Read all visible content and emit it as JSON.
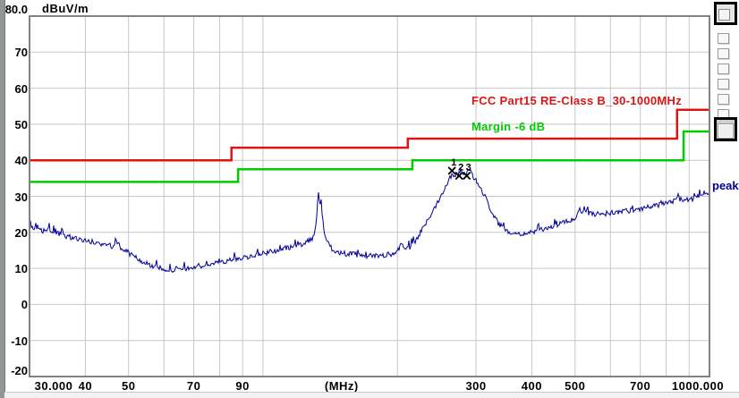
{
  "window": {
    "unit_label": "dBuV/m",
    "peak_label": "peak"
  },
  "legend": {
    "limit": "FCC Part15 RE-Class B_30-1000MHz",
    "margin": "Margin -6 dB"
  },
  "colors": {
    "limit_red": "#dc1414",
    "margin_green": "#00cc00",
    "trace_blue": "#000099",
    "grid": "#c6c6c6",
    "border": "#828282",
    "text": "#000000"
  },
  "chart_data": {
    "type": "line",
    "title": "",
    "xlabel": "(MHz)",
    "ylabel": "dBuV/m",
    "xscale": "log",
    "xmin": 30,
    "xmax": 1000,
    "ymin": -20,
    "ymax": 80,
    "grid": true,
    "x_gridlines": [
      40,
      50,
      60,
      70,
      80,
      90,
      100,
      200,
      300,
      400,
      500,
      600,
      700,
      800,
      900
    ],
    "y_gridlines": [
      70,
      60,
      50,
      40,
      30,
      20,
      10,
      0,
      -10
    ],
    "y_ticks": [
      {
        "v": 80,
        "label": "80.0",
        "dy": -8
      },
      {
        "v": 70,
        "label": "70",
        "dy": 0
      },
      {
        "v": 60,
        "label": "60",
        "dy": 0
      },
      {
        "v": 50,
        "label": "50",
        "dy": 0
      },
      {
        "v": 40,
        "label": "40",
        "dy": 0
      },
      {
        "v": 30,
        "label": "30",
        "dy": 0
      },
      {
        "v": 20,
        "label": "20",
        "dy": 0
      },
      {
        "v": 10,
        "label": "10",
        "dy": 0
      },
      {
        "v": 0,
        "label": "0",
        "dy": 0
      },
      {
        "v": -10,
        "label": "-10",
        "dy": 0
      },
      {
        "v": -20,
        "label": "-20",
        "dy": -7
      }
    ],
    "x_ticks": [
      {
        "f": 30,
        "label": "30.000",
        "dx": 27
      },
      {
        "f": 40,
        "label": "40",
        "dx": 0
      },
      {
        "f": 50,
        "label": "50",
        "dx": 0
      },
      {
        "f": 70,
        "label": "70",
        "dx": 0
      },
      {
        "f": 90,
        "label": "90",
        "dx": 0
      },
      {
        "f": 150,
        "label": "(MHz)",
        "dx": 0
      },
      {
        "f": 300,
        "label": "300",
        "dx": 0
      },
      {
        "f": 400,
        "label": "400",
        "dx": 0
      },
      {
        "f": 500,
        "label": "500",
        "dx": 0
      },
      {
        "f": 700,
        "label": "700",
        "dx": 0
      },
      {
        "f": 1000,
        "label": "1000.000",
        "dx": -13
      }
    ],
    "series": [
      {
        "name": "FCC Part15 RE-Class B_30-1000MHz",
        "role": "limit",
        "color": "#dc1414",
        "points": [
          [
            30,
            40
          ],
          [
            85,
            40
          ],
          [
            85,
            43.5
          ],
          [
            211,
            43.5
          ],
          [
            211,
            46
          ],
          [
            846,
            46
          ],
          [
            846,
            54
          ],
          [
            1000,
            54
          ]
        ]
      },
      {
        "name": "Margin -6 dB",
        "role": "margin",
        "color": "#00cc00",
        "points": [
          [
            30,
            34
          ],
          [
            88,
            34
          ],
          [
            88,
            37.5
          ],
          [
            216,
            37.5
          ],
          [
            216,
            40
          ],
          [
            875,
            40
          ],
          [
            875,
            48
          ],
          [
            1000,
            48
          ]
        ]
      },
      {
        "name": "peak",
        "role": "trace",
        "color": "#000099",
        "anchors": [
          [
            30,
            21.6
          ],
          [
            31,
            20.9
          ],
          [
            32,
            20.4
          ],
          [
            33,
            21.0
          ],
          [
            34,
            20.1
          ],
          [
            35,
            19.5
          ],
          [
            36,
            19.1
          ],
          [
            37,
            18.7
          ],
          [
            38,
            18.3
          ],
          [
            40,
            17.7
          ],
          [
            42,
            17.1
          ],
          [
            44,
            16.5
          ],
          [
            45,
            17.3
          ],
          [
            46,
            16.1
          ],
          [
            47,
            17.9
          ],
          [
            48,
            15.7
          ],
          [
            50,
            14.3
          ],
          [
            52,
            12.9
          ],
          [
            54,
            11.7
          ],
          [
            56,
            10.9
          ],
          [
            58,
            10.3
          ],
          [
            60,
            9.9
          ],
          [
            63,
            9.6
          ],
          [
            66,
            9.8
          ],
          [
            70,
            10.3
          ],
          [
            74,
            10.9
          ],
          [
            78,
            11.5
          ],
          [
            82,
            12.0
          ],
          [
            86,
            12.5
          ],
          [
            90,
            13.0
          ],
          [
            95,
            13.6
          ],
          [
            100,
            14.2
          ],
          [
            105,
            14.8
          ],
          [
            110,
            15.3
          ],
          [
            115,
            15.9
          ],
          [
            120,
            16.5
          ],
          [
            124,
            17.1
          ],
          [
            127,
            17.9
          ],
          [
            129,
            18.5
          ],
          [
            131,
            20.6
          ],
          [
            132,
            25.0
          ],
          [
            133,
            31.2
          ],
          [
            134,
            27.2
          ],
          [
            135,
            29.2
          ],
          [
            136,
            23.6
          ],
          [
            137,
            20.6
          ],
          [
            139,
            17.6
          ],
          [
            141,
            16.1
          ],
          [
            144,
            15.1
          ],
          [
            148,
            14.5
          ],
          [
            153,
            14.1
          ],
          [
            160,
            13.9
          ],
          [
            168,
            13.6
          ],
          [
            176,
            13.5
          ],
          [
            184,
            13.6
          ],
          [
            192,
            13.9
          ],
          [
            198,
            14.3
          ],
          [
            202,
            15.6
          ],
          [
            205,
            17.3
          ],
          [
            207,
            15.9
          ],
          [
            210,
            15.3
          ],
          [
            214,
            16.1
          ],
          [
            218,
            17.1
          ],
          [
            222,
            18.6
          ],
          [
            227,
            20.6
          ],
          [
            232,
            22.6
          ],
          [
            238,
            25.1
          ],
          [
            244,
            27.6
          ],
          [
            250,
            30.1
          ],
          [
            256,
            32.6
          ],
          [
            261,
            34.6
          ],
          [
            265,
            36.3
          ],
          [
            268,
            35.3
          ],
          [
            271,
            36.9
          ],
          [
            274,
            36.0
          ],
          [
            277,
            37.3
          ],
          [
            280,
            36.1
          ],
          [
            283,
            36.7
          ],
          [
            286,
            35.9
          ],
          [
            289,
            37.7
          ],
          [
            292,
            36.5
          ],
          [
            295,
            35.7
          ],
          [
            299,
            34.7
          ],
          [
            303,
            33.5
          ],
          [
            308,
            31.9
          ],
          [
            313,
            30.3
          ],
          [
            318,
            28.5
          ],
          [
            324,
            26.3
          ],
          [
            330,
            24.3
          ],
          [
            336,
            22.7
          ],
          [
            343,
            21.5
          ],
          [
            350,
            20.7
          ],
          [
            358,
            20.2
          ],
          [
            366,
            19.9
          ],
          [
            375,
            19.7
          ],
          [
            385,
            19.7
          ],
          [
            395,
            19.9
          ],
          [
            405,
            20.2
          ],
          [
            420,
            20.7
          ],
          [
            435,
            21.4
          ],
          [
            450,
            22.0
          ],
          [
            465,
            22.5
          ],
          [
            480,
            23.0
          ],
          [
            495,
            23.7
          ],
          [
            505,
            24.7
          ],
          [
            512,
            26.4
          ],
          [
            518,
            25.5
          ],
          [
            524,
            27.0
          ],
          [
            530,
            25.9
          ],
          [
            537,
            25.4
          ],
          [
            545,
            25.2
          ],
          [
            560,
            25.1
          ],
          [
            580,
            25.2
          ],
          [
            600,
            25.4
          ],
          [
            620,
            25.6
          ],
          [
            645,
            25.9
          ],
          [
            670,
            26.2
          ],
          [
            700,
            26.6
          ],
          [
            730,
            27.1
          ],
          [
            760,
            27.5
          ],
          [
            790,
            27.9
          ],
          [
            820,
            28.3
          ],
          [
            845,
            29.4
          ],
          [
            852,
            30.4
          ],
          [
            860,
            29.1
          ],
          [
            880,
            28.8
          ],
          [
            900,
            29.1
          ],
          [
            925,
            29.5
          ],
          [
            950,
            29.9
          ],
          [
            975,
            30.4
          ],
          [
            1000,
            30.9
          ]
        ]
      }
    ],
    "markers": [
      {
        "n": "1",
        "f": 265,
        "dB": 37.1
      },
      {
        "n": "2",
        "f": 275,
        "dB": 35.7
      },
      {
        "n": "3",
        "f": 286,
        "dB": 35.7
      }
    ]
  },
  "side_panel": {
    "small_button_count": 6
  }
}
